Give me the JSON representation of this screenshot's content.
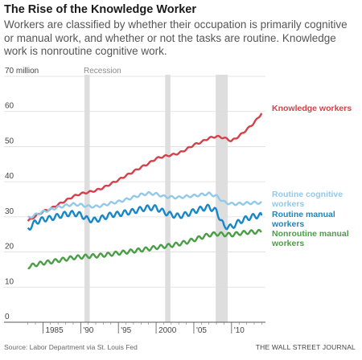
{
  "header": {
    "title": "The Rise of the Knowledge Worker",
    "subtitle": "Workers are classified by whether their occupation is primarily cognitive or manual work, and whether or not the tasks are routine. Knowledge work is nonroutine cognitive work."
  },
  "footer": {
    "source": "Source: Labor Department via St. Louis Fed",
    "credit": "THE WALL STREET JOURNAL"
  },
  "chart_data": {
    "type": "line",
    "xlim": [
      1982.5,
      2014.5
    ],
    "ylim": [
      0,
      70
    ],
    "y_ticks": [
      0,
      10,
      20,
      30,
      40,
      50,
      60,
      70
    ],
    "y_tick_labels": [
      "0",
      "10",
      "20",
      "30",
      "40",
      "50",
      "60",
      "70 million"
    ],
    "x_ticks": [
      1985,
      1990,
      1995,
      2000,
      2005,
      2010
    ],
    "x_tick_labels": [
      "1985",
      "'90",
      "'95",
      "2000",
      "'05",
      "'10"
    ],
    "grid": true,
    "recessions": [
      {
        "label": "Recession",
        "start": 1990.5,
        "end": 1991.2
      },
      {
        "label": "",
        "start": 2001.2,
        "end": 2001.9
      },
      {
        "label": "",
        "start": 2007.9,
        "end": 2009.5
      }
    ],
    "series": [
      {
        "name": "Knowledge workers",
        "label_lines": [
          "Knowledge workers"
        ],
        "color": "#d6404a",
        "x": [
          1983,
          1984,
          1985,
          1986,
          1987,
          1988,
          1989,
          1990,
          1991,
          1992,
          1993,
          1994,
          1995,
          1996,
          1997,
          1998,
          1999,
          2000,
          2001,
          2002,
          2003,
          2004,
          2005,
          2006,
          2007,
          2008,
          2009,
          2010,
          2011,
          2012,
          2013,
          2014
        ],
        "values": [
          28.8,
          30.2,
          31.5,
          32.3,
          33.5,
          34.6,
          35.8,
          36.6,
          37.0,
          37.5,
          38.3,
          39.4,
          40.5,
          41.7,
          42.9,
          44.1,
          45.2,
          46.6,
          47.2,
          47.6,
          48.1,
          49.2,
          50.5,
          51.3,
          52.4,
          52.9,
          52.5,
          51.6,
          53.0,
          54.8,
          56.8,
          59.5
        ]
      },
      {
        "name": "Routine cognitive workers",
        "label_lines": [
          "Routine cognitive",
          "workers"
        ],
        "color": "#93c9e8",
        "x": [
          1983,
          1984,
          1985,
          1986,
          1987,
          1988,
          1989,
          1990,
          1991,
          1992,
          1993,
          1994,
          1995,
          1996,
          1997,
          1998,
          1999,
          2000,
          2001,
          2002,
          2003,
          2004,
          2005,
          2006,
          2007,
          2008,
          2009,
          2010,
          2011,
          2012,
          2013,
          2014
        ],
        "values": [
          29.6,
          30.6,
          31.4,
          32.1,
          32.7,
          33.2,
          33.6,
          33.4,
          33.0,
          32.9,
          33.3,
          33.9,
          34.3,
          34.9,
          35.6,
          36.3,
          36.7,
          36.5,
          35.8,
          35.6,
          35.5,
          35.8,
          36.0,
          36.3,
          36.6,
          35.9,
          34.2,
          33.7,
          33.7,
          33.9,
          34.0,
          34.0
        ]
      },
      {
        "name": "Routine manual workers",
        "label_lines": [
          "Routine manual",
          "workers"
        ],
        "color": "#1787c8",
        "x": [
          1983,
          1984,
          1985,
          1986,
          1987,
          1988,
          1989,
          1990,
          1991,
          1992,
          1993,
          1994,
          1995,
          1996,
          1997,
          1998,
          1999,
          2000,
          2001,
          2002,
          2003,
          2004,
          2005,
          2006,
          2007,
          2008,
          2009,
          2010,
          2011,
          2012,
          2013,
          2014
        ],
        "values": [
          26.5,
          28.5,
          29.3,
          29.6,
          30.2,
          30.8,
          31.0,
          30.6,
          29.2,
          29.1,
          29.8,
          30.6,
          30.8,
          31.2,
          31.6,
          32.2,
          32.6,
          32.6,
          31.4,
          30.6,
          30.2,
          30.7,
          31.6,
          32.3,
          32.8,
          31.6,
          27.3,
          27.1,
          28.6,
          29.6,
          30.2,
          30.4
        ]
      },
      {
        "name": "Nonroutine manual workers",
        "label_lines": [
          "Nonroutine manual",
          "workers"
        ],
        "color": "#4a9e46",
        "x": [
          1983,
          1984,
          1985,
          1986,
          1987,
          1988,
          1989,
          1990,
          1991,
          1992,
          1993,
          1994,
          1995,
          1996,
          1997,
          1998,
          1999,
          2000,
          2001,
          2002,
          2003,
          2004,
          2005,
          2006,
          2007,
          2008,
          2009,
          2010,
          2011,
          2012,
          2013,
          2014
        ],
        "values": [
          15.8,
          16.4,
          16.9,
          17.2,
          17.6,
          18.0,
          18.4,
          18.6,
          18.8,
          18.9,
          19.1,
          19.4,
          19.7,
          20.0,
          20.3,
          20.6,
          20.9,
          21.3,
          21.6,
          21.9,
          22.3,
          22.8,
          23.5,
          24.2,
          24.9,
          25.2,
          25.0,
          24.9,
          25.3,
          25.6,
          25.7,
          25.8
        ]
      }
    ]
  }
}
